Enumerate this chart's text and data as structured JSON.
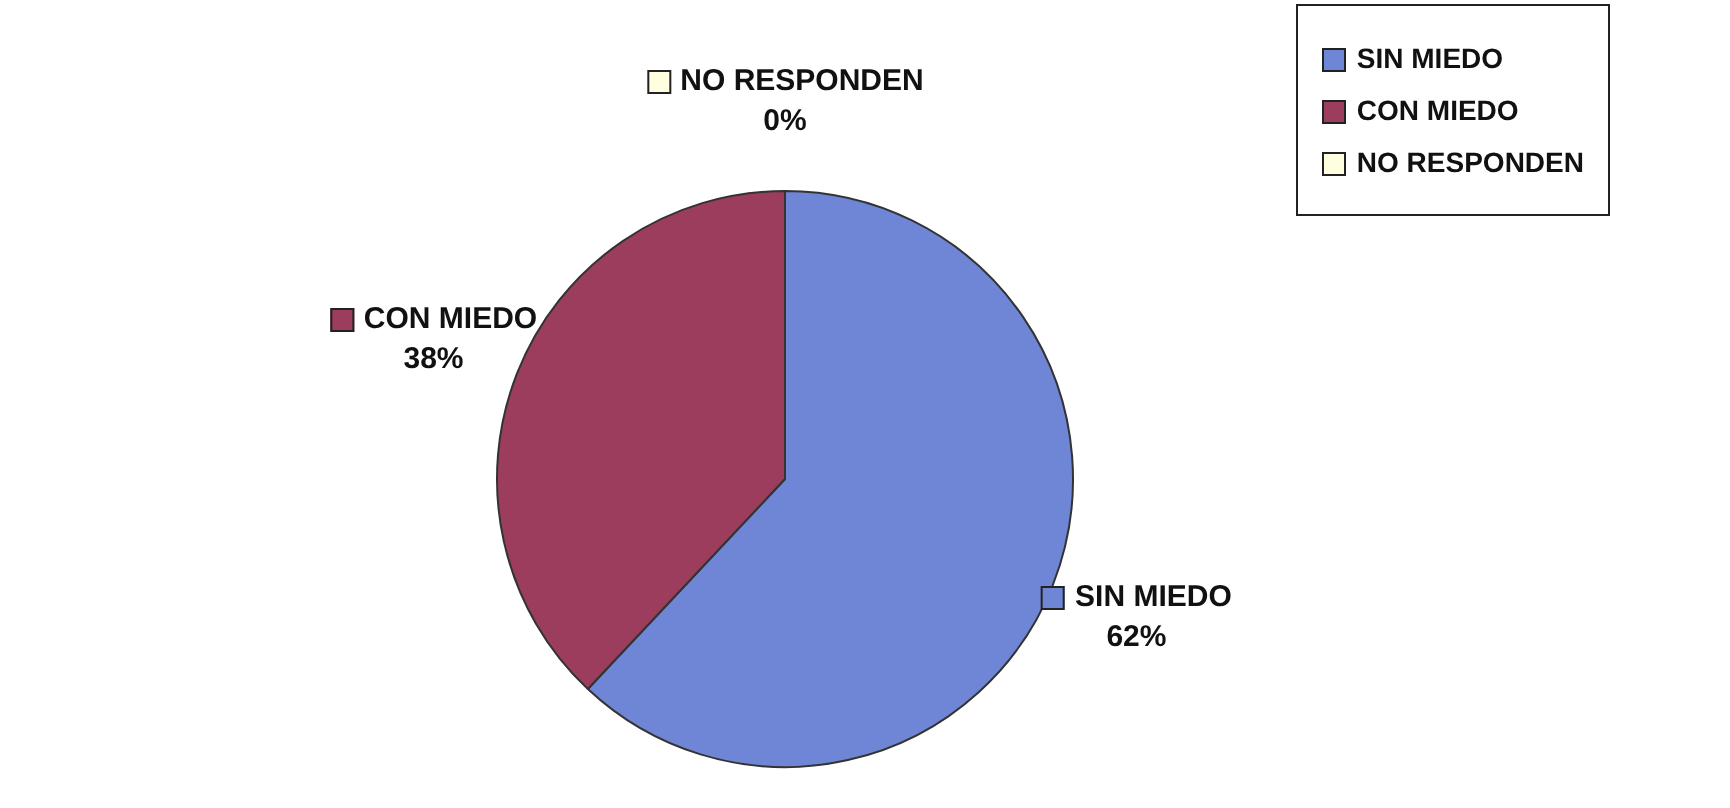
{
  "chart_data": {
    "type": "pie",
    "categories": [
      "SIN MIEDO",
      "CON MIEDO",
      "NO RESPONDEN"
    ],
    "values": [
      62,
      38,
      0
    ],
    "value_labels": [
      "62%",
      "38%",
      "0%"
    ],
    "colors": [
      "#6f86d6",
      "#9c3d5e",
      "#ffffe0"
    ],
    "legend": "top right"
  }
}
